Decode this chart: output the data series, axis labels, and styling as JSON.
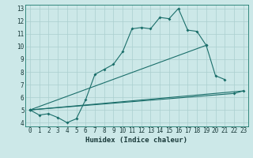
{
  "xlabel": "Humidex (Indice chaleur)",
  "bg_color": "#cce8e8",
  "grid_color": "#aacfcf",
  "line_color": "#1a6e6a",
  "xlim": [
    -0.5,
    23.5
  ],
  "ylim": [
    3.7,
    13.3
  ],
  "xticks": [
    0,
    1,
    2,
    3,
    4,
    5,
    6,
    7,
    8,
    9,
    10,
    11,
    12,
    13,
    14,
    15,
    16,
    17,
    18,
    19,
    20,
    21,
    22,
    23
  ],
  "yticks": [
    4,
    5,
    6,
    7,
    8,
    9,
    10,
    11,
    12,
    13
  ],
  "line1_x": [
    0,
    1,
    2,
    3,
    4,
    5,
    6,
    7,
    8,
    9,
    10,
    11,
    12,
    13,
    14,
    15,
    16,
    17,
    18,
    19
  ],
  "line1_y": [
    5.0,
    4.6,
    4.7,
    4.4,
    4.0,
    4.3,
    5.8,
    7.8,
    8.2,
    8.6,
    9.6,
    11.4,
    11.5,
    11.4,
    12.3,
    12.2,
    13.0,
    11.3,
    11.2,
    10.1
  ],
  "line2_x": [
    0,
    19,
    20,
    21
  ],
  "line2_y": [
    5.0,
    10.1,
    7.7,
    7.4
  ],
  "line3_x": [
    0,
    22,
    23
  ],
  "line3_y": [
    5.0,
    6.3,
    6.5
  ],
  "line4_x": [
    0,
    23
  ],
  "line4_y": [
    5.0,
    6.5
  ]
}
